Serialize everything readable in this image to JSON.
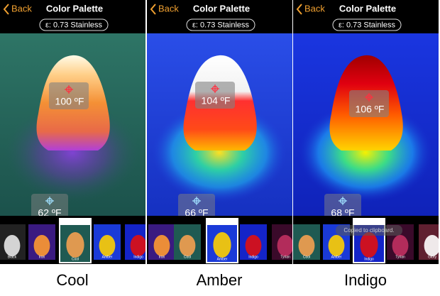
{
  "panels": [
    {
      "back": "Back",
      "title": "Color Palette",
      "emissivity": "ε: 0.73 Stainless",
      "spot_temp": "100 ºF",
      "low_temp": "62 ºF",
      "thumbnails": [
        "Black",
        "Iron",
        "Cool",
        "Amber",
        "Indigo"
      ],
      "caption": "Cool"
    },
    {
      "back": "Back",
      "title": "Color Palette",
      "emissivity": "ε: 0.73 Stainless",
      "spot_temp": "104 ºF",
      "low_temp": "66 ºF",
      "thumbnails": [
        "Iron",
        "Cool",
        "Amber",
        "Indigo",
        "Tyrian"
      ],
      "caption": "Amber"
    },
    {
      "back": "Back",
      "title": "Color Palette",
      "emissivity": "ε: 0.73 Stainless",
      "spot_temp": "106 ºF",
      "low_temp": "68 ºF",
      "thumbnails": [
        "Cool",
        "Amber",
        "Indigo",
        "Tyrian",
        "Glory"
      ],
      "caption": "Indigo"
    }
  ],
  "toast": "Copied to clipboard."
}
